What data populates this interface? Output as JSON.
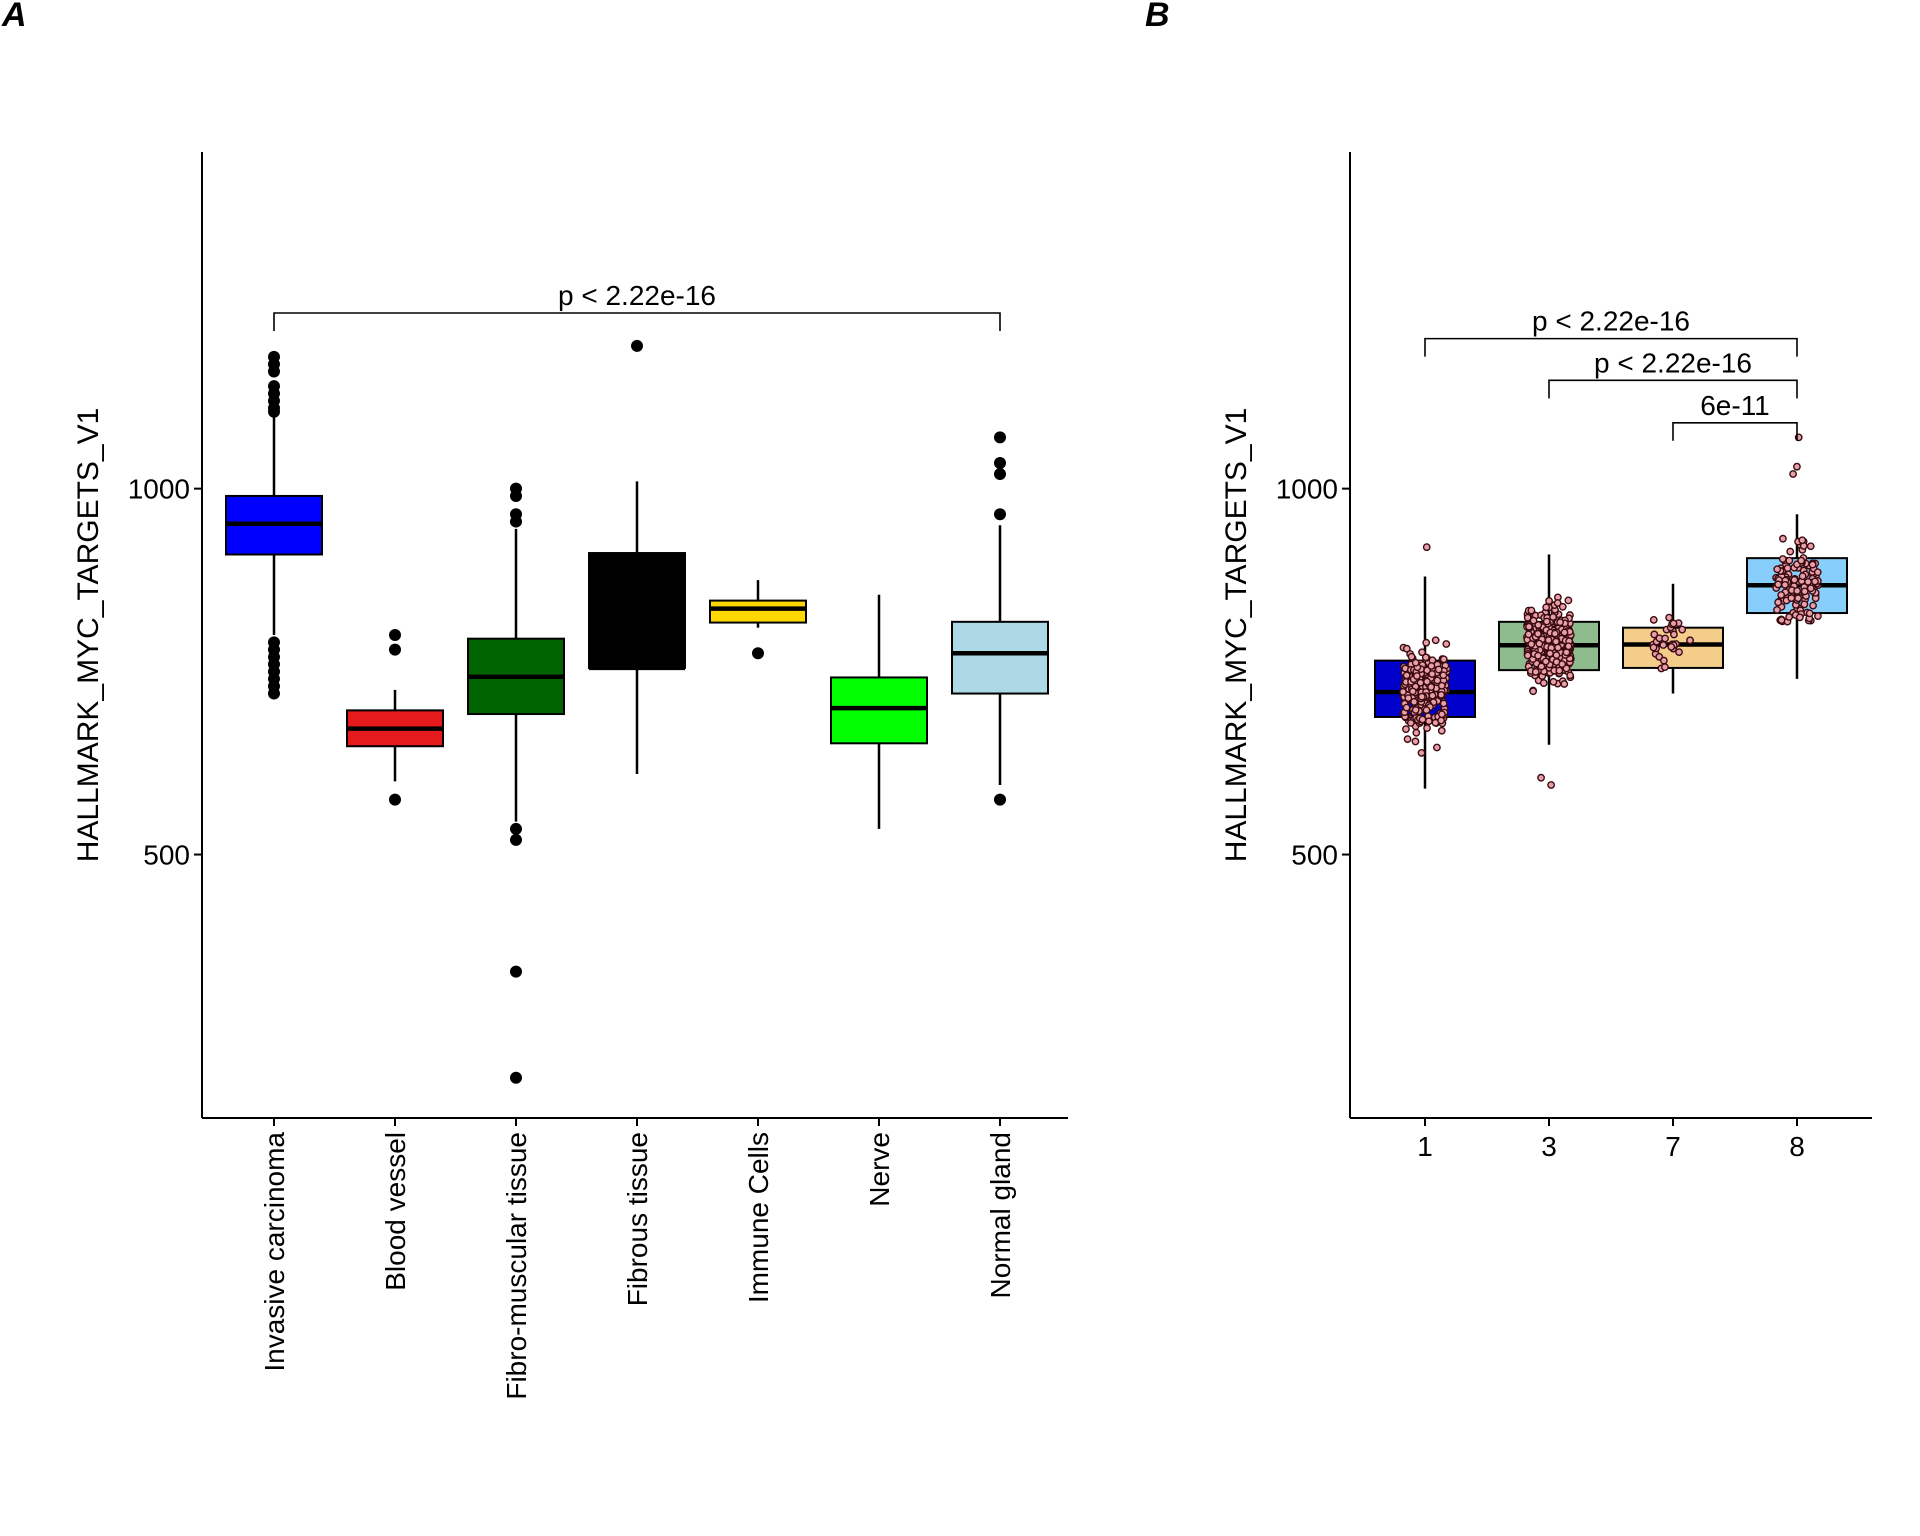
{
  "chart_data": [
    {
      "panel": "A",
      "type": "box",
      "ylabel": "HALLMARK_MYC_TARGETS_V1",
      "xlabel": "",
      "ylim": [
        140,
        1460
      ],
      "yticks": [
        500,
        1000
      ],
      "categories": [
        "Invasive carcinoma",
        "Blood vessel",
        "Fibro-muscular tissue",
        "Fibrous tissue",
        "Immune Cells",
        "Nerve",
        "Normal gland"
      ],
      "boxes": [
        {
          "name": "Invasive carcinoma",
          "color": "#0000FF",
          "q1": 910,
          "median": 952,
          "q3": 990,
          "whisker_low": 800,
          "whisker_high": 1100,
          "outliers": [
            1180,
            1170,
            1160,
            1140,
            1130,
            1120,
            1110,
            1105,
            790,
            780,
            770,
            760,
            750,
            740,
            730,
            720
          ]
        },
        {
          "name": "Blood vessel",
          "color": "#E41A1C",
          "q1": 648,
          "median": 672,
          "q3": 697,
          "whisker_low": 600,
          "whisker_high": 725,
          "outliers": [
            800,
            780,
            575
          ]
        },
        {
          "name": "Fibro-muscular tissue",
          "color": "#006400",
          "q1": 692,
          "median": 743,
          "q3": 795,
          "whisker_low": 545,
          "whisker_high": 945,
          "outliers": [
            1000,
            990,
            965,
            955,
            535,
            520,
            340,
            195
          ]
        },
        {
          "name": "Fibrous tissue",
          "color": "#000000",
          "q1": 755,
          "median": 755,
          "q3": 912,
          "whisker_low": 610,
          "whisker_high": 1010,
          "outliers": [
            1195
          ]
        },
        {
          "name": "Immune Cells",
          "color": "#FFD700",
          "q1": 817,
          "median": 836,
          "q3": 847,
          "whisker_low": 810,
          "whisker_high": 875,
          "outliers": [
            775
          ]
        },
        {
          "name": "Nerve",
          "color": "#00FF00",
          "q1": 652,
          "median": 700,
          "q3": 742,
          "whisker_low": 535,
          "whisker_high": 855,
          "outliers": []
        },
        {
          "name": "Normal gland",
          "color": "#ADD8E6",
          "q1": 720,
          "median": 775,
          "q3": 818,
          "whisker_low": 595,
          "whisker_high": 950,
          "outliers": [
            1070,
            1035,
            1020,
            965,
            575
          ]
        }
      ],
      "comparisons": [
        {
          "from": "Invasive carcinoma",
          "to": "Normal gland",
          "label": "p < 2.22e-16",
          "y": 1240
        }
      ]
    },
    {
      "panel": "B",
      "type": "box",
      "ylabel": "HALLMARK_MYC_TARGETS_V1",
      "xlabel": "",
      "ylim": [
        140,
        1460
      ],
      "yticks": [
        500,
        1000
      ],
      "categories": [
        "1",
        "3",
        "7",
        "8"
      ],
      "boxes": [
        {
          "name": "1",
          "color": "#0000CD",
          "q1": 688,
          "median": 722,
          "q3": 765,
          "whisker_low": 590,
          "whisker_high": 880,
          "outliers": [
            920
          ]
        },
        {
          "name": "3",
          "color": "#8FBC8F",
          "q1": 752,
          "median": 786,
          "q3": 818,
          "whisker_low": 650,
          "whisker_high": 910,
          "outliers": [
            605,
            595
          ]
        },
        {
          "name": "7",
          "color": "#F5CD8A",
          "q1": 755,
          "median": 787,
          "q3": 810,
          "whisker_low": 720,
          "whisker_high": 870,
          "outliers": []
        },
        {
          "name": "8",
          "color": "#87CEFA",
          "q1": 830,
          "median": 868,
          "q3": 905,
          "whisker_low": 740,
          "whisker_high": 965,
          "outliers": [
            1070,
            1030,
            1020
          ]
        }
      ],
      "jitter": {
        "point_fill": "#E8A0A8",
        "point_stroke": "#3A0A10",
        "groups": [
          {
            "name": "1",
            "n": 240,
            "spread": 0.42
          },
          {
            "name": "3",
            "n": 330,
            "spread": 0.42
          },
          {
            "name": "7",
            "n": 30,
            "spread": 0.38
          },
          {
            "name": "8",
            "n": 130,
            "spread": 0.4
          }
        ]
      },
      "comparisons": [
        {
          "from": "1",
          "to": "8",
          "label": "p < 2.22e-16",
          "y": 1205
        },
        {
          "from": "3",
          "to": "8",
          "label": "p < 2.22e-16",
          "y": 1148
        },
        {
          "from": "7",
          "to": "8",
          "label": "6e-11",
          "y": 1090
        }
      ]
    }
  ]
}
